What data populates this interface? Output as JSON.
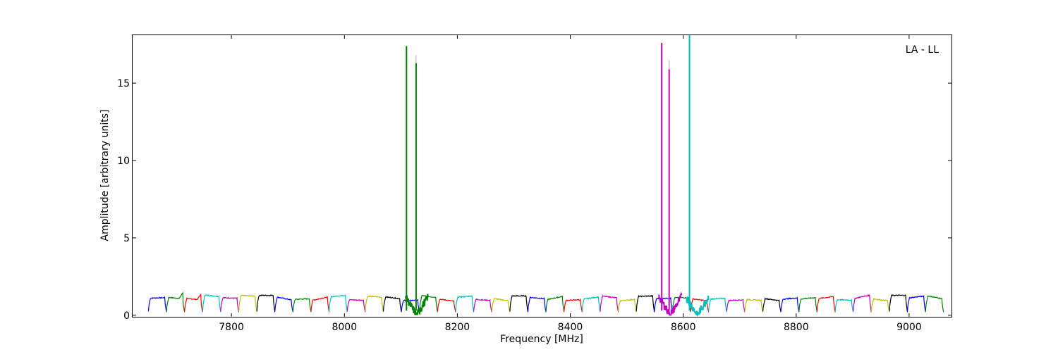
{
  "chart_data": {
    "type": "line",
    "annotation": "LA - LL",
    "xlabel": "Frequency [MHz]",
    "ylabel": "Amplitude [arbitrary units]",
    "xlim": [
      7625,
      9075
    ],
    "ylim": [
      -0.1,
      18.1
    ],
    "xticks": [
      7800,
      8000,
      8200,
      8400,
      8600,
      8800,
      9000
    ],
    "yticks": [
      0,
      5,
      10,
      15
    ],
    "grid": false,
    "channel_width_mhz": 32,
    "channel_start_mhz": 7653,
    "channel_count": 44,
    "channel_amplitude_range": [
      0.2,
      1.6
    ],
    "color_cycle": [
      "#0000ff",
      "#008000",
      "#ff0000",
      "#00bfbf",
      "#bf00bf",
      "#bfbf00",
      "#000000"
    ],
    "peaks": [
      {
        "x": 8110,
        "y": 17.4,
        "color": "#008000"
      },
      {
        "x": 8127,
        "y": 16.8,
        "color": "#aaaaaa"
      },
      {
        "x": 8127,
        "y": 16.3,
        "color": "#008000"
      },
      {
        "x": 8562,
        "y": 17.6,
        "color": "#bf00bf"
      },
      {
        "x": 8575,
        "y": 16.5,
        "color": "#aaaaaa"
      },
      {
        "x": 8575,
        "y": 15.9,
        "color": "#bf00bf"
      },
      {
        "x": 8611,
        "y": 18.1,
        "color": "#00bfbf"
      }
    ]
  }
}
